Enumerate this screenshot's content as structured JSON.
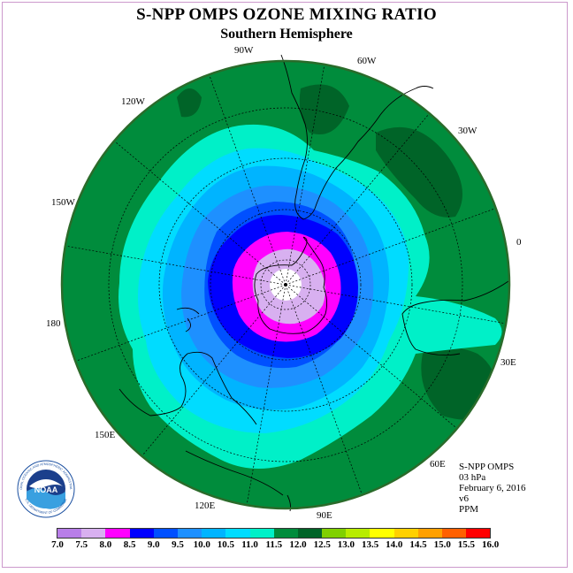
{
  "title": "S-NPP OMPS OZONE MIXING RATIO",
  "subtitle": "Southern Hemisphere",
  "longitude_labels": [
    {
      "text": "90W"
    },
    {
      "text": "60W"
    },
    {
      "text": "120W"
    },
    {
      "text": "30W"
    },
    {
      "text": "150W"
    },
    {
      "text": "0"
    },
    {
      "text": "180"
    },
    {
      "text": "30E"
    },
    {
      "text": "150E"
    },
    {
      "text": "60E"
    },
    {
      "text": "120E"
    },
    {
      "text": "90E"
    }
  ],
  "info": {
    "instrument": "S-NPP OMPS",
    "level": "03 hPa",
    "date": "February 6, 2016",
    "version": "v6",
    "units": "PPM"
  },
  "logo": {
    "text": "NOAA",
    "ring_text": "NATIONAL OCEANIC AND ATMOSPHERIC ADMINISTRATION",
    "bottom_text": "U.S. DEPARTMENT OF COMMERCE"
  },
  "colorbar": {
    "ticks": [
      "7.0",
      "7.5",
      "8.0",
      "8.5",
      "9.0",
      "9.5",
      "10.0",
      "10.5",
      "11.0",
      "11.5",
      "12.0",
      "12.5",
      "13.0",
      "13.5",
      "14.0",
      "14.5",
      "15.0",
      "15.5",
      "16.0"
    ],
    "colors": [
      "#b87ee8",
      "#d8b0f0",
      "#ff00ff",
      "#0000ff",
      "#0050ff",
      "#1e90ff",
      "#00b4ff",
      "#00dcff",
      "#00f0c8",
      "#008c3c",
      "#006428",
      "#80d000",
      "#b8ec00",
      "#ffff00",
      "#ffd000",
      "#ffa000",
      "#ff6000",
      "#ff0000",
      "#8b5a3c"
    ]
  },
  "colors": {
    "map_border": "#2a6b2a",
    "coast": "#000000",
    "grid": "#000000"
  }
}
